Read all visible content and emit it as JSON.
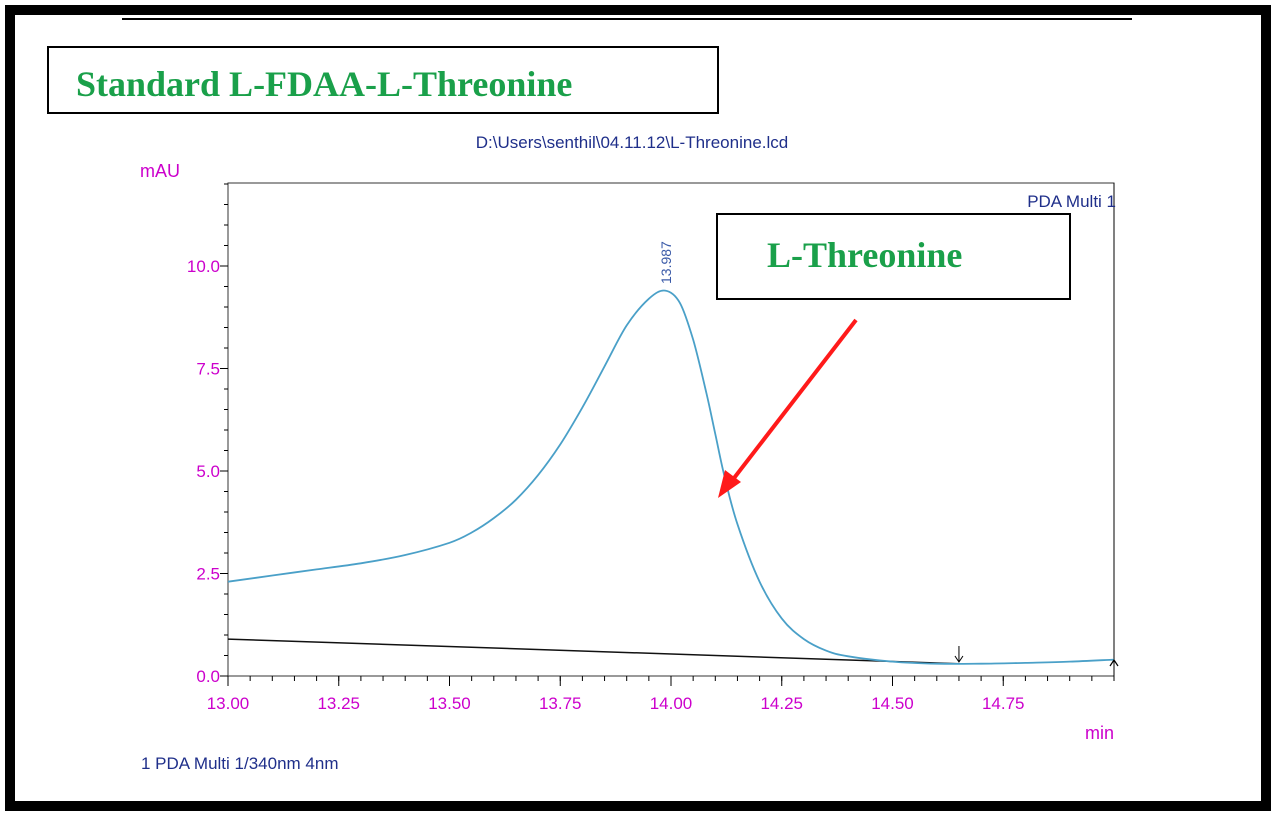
{
  "page": {
    "title_label": "Standard L-FDAA-L-Threonine",
    "peak_label": "L-Threonine"
  },
  "colors": {
    "title_green": "#1aa04a",
    "axis_magenta": "#cc00cc",
    "header_navy": "#1f2f8a",
    "trace_blue": "#4aa0c8",
    "arrow_red": "#ff1a1a"
  },
  "chart_data": {
    "type": "line",
    "title": "D:\\Users\\senthil\\04.11.12\\L-Threonine.lcd",
    "ylabel": "mAU",
    "xlabel": "min",
    "channel_label": "PDA Multi 1",
    "footer": "1  PDA Multi 1/340nm 4nm",
    "xlim": [
      13.0,
      15.0
    ],
    "ylim": [
      0,
      12.5
    ],
    "x_ticks": [
      "13.00",
      "13.25",
      "13.50",
      "13.75",
      "14.00",
      "14.25",
      "14.50",
      "14.75"
    ],
    "x_tick_values": [
      13.0,
      13.25,
      13.5,
      13.75,
      14.0,
      14.25,
      14.5,
      14.75
    ],
    "y_ticks": [
      "0.0",
      "2.5",
      "5.0",
      "7.5",
      "10.0"
    ],
    "y_tick_values": [
      0,
      2.5,
      5.0,
      7.5,
      10.0
    ],
    "peak_label": "13.987",
    "peak_x": 13.987,
    "series": [
      {
        "x": [
          13.0,
          13.1,
          13.2,
          13.3,
          13.4,
          13.5,
          13.55,
          13.6,
          13.65,
          13.7,
          13.75,
          13.8,
          13.85,
          13.9,
          13.95,
          13.987,
          14.02,
          14.05,
          14.08,
          14.1,
          14.12,
          14.15,
          14.2,
          14.25,
          14.3,
          14.35,
          14.4,
          14.5,
          14.6,
          14.7,
          14.8,
          14.9,
          15.0
        ],
        "y": [
          2.3,
          2.45,
          2.6,
          2.75,
          2.95,
          3.25,
          3.5,
          3.85,
          4.3,
          4.9,
          5.65,
          6.55,
          7.55,
          8.55,
          9.2,
          9.4,
          9.1,
          8.2,
          6.9,
          5.9,
          4.9,
          3.7,
          2.3,
          1.4,
          0.9,
          0.62,
          0.48,
          0.35,
          0.3,
          0.3,
          0.32,
          0.35,
          0.4
        ]
      },
      {
        "x": [
          13.0,
          14.65
        ],
        "y": [
          0.9,
          0.3
        ]
      }
    ],
    "grid": false
  }
}
